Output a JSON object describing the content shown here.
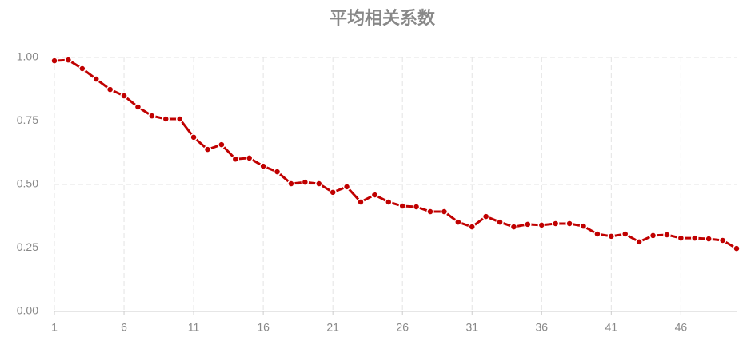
{
  "chart_data": {
    "type": "line",
    "title": "平均相关系数",
    "x": [
      1,
      2,
      3,
      4,
      5,
      6,
      7,
      8,
      9,
      10,
      11,
      12,
      13,
      14,
      15,
      16,
      17,
      18,
      19,
      20,
      21,
      22,
      23,
      24,
      25,
      26,
      27,
      28,
      29,
      30,
      31,
      32,
      33,
      34,
      35,
      36,
      37,
      38,
      39,
      40,
      41,
      42,
      43,
      44,
      45,
      46,
      47,
      48,
      49,
      50
    ],
    "series": [
      {
        "color": "#c00000",
        "values": [
          0.987,
          0.99,
          0.956,
          0.915,
          0.874,
          0.849,
          0.805,
          0.77,
          0.758,
          0.758,
          0.686,
          0.638,
          0.657,
          0.6,
          0.604,
          0.572,
          0.55,
          0.503,
          0.509,
          0.503,
          0.469,
          0.491,
          0.431,
          0.459,
          0.431,
          0.415,
          0.412,
          0.393,
          0.393,
          0.352,
          0.333,
          0.374,
          0.352,
          0.333,
          0.343,
          0.34,
          0.346,
          0.346,
          0.336,
          0.305,
          0.296,
          0.305,
          0.274,
          0.299,
          0.302,
          0.289,
          0.289,
          0.286,
          0.28,
          0.248
        ]
      }
    ],
    "xlim": [
      1,
      50
    ],
    "xticks": [
      1,
      6,
      11,
      16,
      21,
      26,
      31,
      36,
      41,
      46
    ],
    "ylim": [
      0,
      1
    ],
    "yticks": [
      {
        "value": 0,
        "label": "0.00"
      },
      {
        "value": 0.25,
        "label": "0.25"
      },
      {
        "value": 0.5,
        "label": "0.50"
      },
      {
        "value": 0.75,
        "label": "0.75"
      },
      {
        "value": 1,
        "label": "1.00"
      }
    ],
    "grid": true
  }
}
